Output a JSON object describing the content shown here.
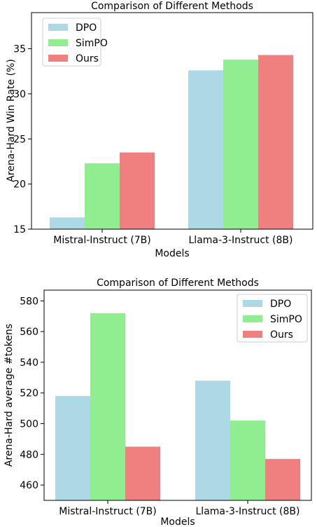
{
  "chart_data": [
    {
      "type": "bar",
      "title": "Comparison of Different Methods",
      "xlabel": "Models",
      "ylabel": "Arena-Hard Win Rate (%)",
      "ylim": [
        15,
        39
      ],
      "yticks": [
        15,
        20,
        25,
        30,
        35
      ],
      "categories": [
        "Mistral-Instruct (7B)",
        "Llama-3-Instruct (8B)"
      ],
      "legend_position": "top-left",
      "grid": false,
      "series": [
        {
          "name": "DPO",
          "color": "#add8e6",
          "values": [
            16.3,
            32.6
          ]
        },
        {
          "name": "SimPO",
          "color": "#90ee90",
          "values": [
            22.3,
            33.8
          ]
        },
        {
          "name": "Ours",
          "color": "#f08080",
          "values": [
            23.5,
            34.3
          ]
        }
      ]
    },
    {
      "type": "bar",
      "title": "Comparison of Different Methods",
      "xlabel": "Models",
      "ylabel": "Arena-Hard average #tokens",
      "ylim": [
        450,
        587
      ],
      "yticks": [
        460,
        480,
        500,
        520,
        540,
        560,
        580
      ],
      "categories": [
        "Mistral-Instruct (7B)",
        "Llama-3-Instruct (8B)"
      ],
      "legend_position": "top-right",
      "grid": false,
      "series": [
        {
          "name": "DPO",
          "color": "#add8e6",
          "values": [
            518,
            528
          ]
        },
        {
          "name": "SimPO",
          "color": "#90ee90",
          "values": [
            572,
            502
          ]
        },
        {
          "name": "Ours",
          "color": "#f08080",
          "values": [
            485,
            477
          ]
        }
      ]
    }
  ]
}
